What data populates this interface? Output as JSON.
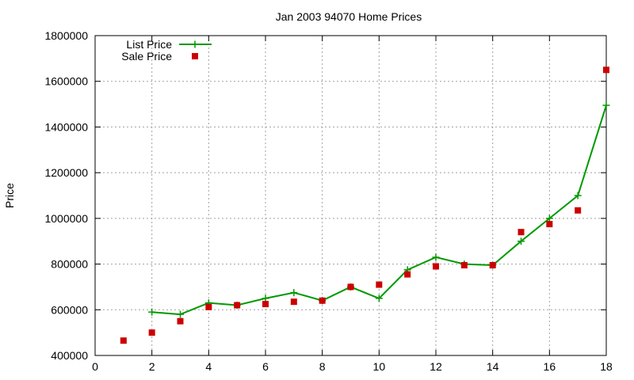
{
  "chart_data": {
    "type": "line",
    "title": "Jan 2003 94070 Home Prices",
    "xlabel": "",
    "ylabel": "Price",
    "xlim": [
      0,
      18
    ],
    "ylim": [
      400000,
      1800000
    ],
    "xticks": [
      0,
      2,
      4,
      6,
      8,
      10,
      12,
      14,
      16,
      18
    ],
    "yticks": [
      400000,
      600000,
      800000,
      1000000,
      1200000,
      1400000,
      1600000,
      1800000
    ],
    "grid": true,
    "legend_position": "top-left",
    "x": [
      1,
      2,
      3,
      4,
      5,
      6,
      7,
      8,
      9,
      10,
      11,
      12,
      13,
      14,
      15,
      16,
      17,
      18
    ],
    "series": [
      {
        "name": "List Price",
        "style": "line+points",
        "marker": "plus",
        "color": "#009900",
        "x": [
          2,
          3,
          4,
          5,
          6,
          7,
          8,
          9,
          10,
          11,
          12,
          13,
          14,
          15,
          16,
          17,
          18
        ],
        "values": [
          590000,
          580000,
          630000,
          620000,
          650000,
          675000,
          640000,
          700000,
          650000,
          775000,
          830000,
          800000,
          795000,
          900000,
          1000000,
          1100000,
          1495000
        ]
      },
      {
        "name": "Sale Price",
        "style": "points",
        "marker": "square",
        "color": "#cc0000",
        "x": [
          1,
          2,
          3,
          4,
          5,
          6,
          7,
          8,
          9,
          10,
          11,
          12,
          13,
          14,
          15,
          16,
          17,
          18
        ],
        "values": [
          465000,
          500000,
          550000,
          612000,
          620000,
          625000,
          635000,
          640000,
          700000,
          710000,
          755000,
          790000,
          795000,
          795000,
          940000,
          975000,
          1035000,
          1650000
        ]
      }
    ]
  }
}
